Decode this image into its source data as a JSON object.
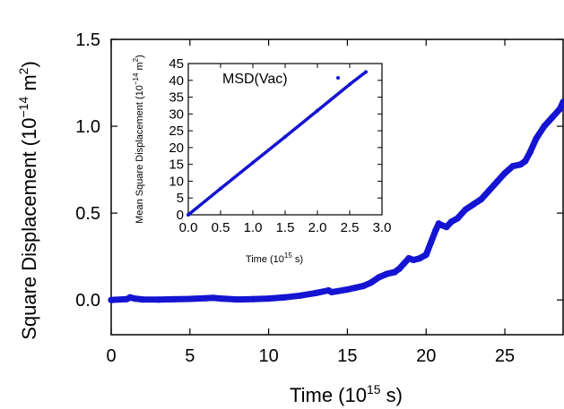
{
  "chart_data": [
    {
      "type": "scatter",
      "xlabel": {
        "pre": "Time (10",
        "sup": "15",
        "post": " s)"
      },
      "ylabel": {
        "pre": "Square Displacement (10",
        "sup": "−14",
        "mid": " m",
        "sup2": "2",
        "post": ")"
      },
      "xlim": [
        0,
        28.7
      ],
      "ylim": [
        -0.2,
        1.5
      ],
      "xticks": [
        "0",
        "5",
        "10",
        "15",
        "20",
        "25"
      ],
      "yticks": [
        "0.0",
        "0.5",
        "1.0",
        "1.5"
      ],
      "color": "#1414d2",
      "series": [
        {
          "x": [
            0,
            1,
            1.2,
            1.5,
            2,
            3,
            4,
            5,
            6,
            6.5,
            7,
            8,
            9,
            10,
            11,
            12,
            13,
            13.8,
            14,
            15,
            15.5,
            16,
            16.5,
            17,
            17.5,
            18,
            18.3,
            18.6,
            18.9,
            19.2,
            19.6,
            20,
            20.3,
            20.6,
            20.8,
            21,
            21.3,
            21.6,
            22,
            22.5,
            23,
            23.5,
            24,
            24.5,
            25,
            25.5,
            26,
            26.3,
            26.6,
            27,
            27.5,
            28,
            28.5,
            28.7
          ],
          "y": [
            0,
            0.005,
            0.015,
            0.008,
            0.003,
            0.002,
            0.004,
            0.006,
            0.01,
            0.012,
            0.008,
            0.003,
            0.005,
            0.008,
            0.015,
            0.025,
            0.04,
            0.055,
            0.045,
            0.06,
            0.07,
            0.08,
            0.1,
            0.13,
            0.15,
            0.16,
            0.18,
            0.21,
            0.24,
            0.23,
            0.24,
            0.26,
            0.33,
            0.4,
            0.44,
            0.43,
            0.42,
            0.45,
            0.47,
            0.52,
            0.55,
            0.58,
            0.63,
            0.68,
            0.73,
            0.77,
            0.78,
            0.8,
            0.85,
            0.93,
            1.0,
            1.05,
            1.1,
            1.14
          ]
        }
      ]
    },
    {
      "type": "line",
      "xlabel": {
        "pre": "Time (10",
        "sup": "15",
        "post": " s)"
      },
      "ylabel": {
        "pre": "Mean Square Displacement (10",
        "sup": "−14",
        "mid": " m",
        "sup2": "2",
        "post": ")"
      },
      "xlim": [
        0,
        3.0
      ],
      "ylim": [
        0,
        45
      ],
      "xticks": [
        "0.0",
        "0.5",
        "1.0",
        "1.5",
        "2.0",
        "2.5",
        "3.0"
      ],
      "yticks": [
        "0",
        "5",
        "10",
        "15",
        "20",
        "25",
        "30",
        "35",
        "40",
        "45"
      ],
      "legend": "MSD(Vac)",
      "legend_position": "top-left",
      "color": "#1414d2",
      "series": [
        {
          "name": "MSD(Vac)",
          "x": [
            0,
            0.5,
            1.0,
            1.5,
            2.0,
            2.5,
            2.75
          ],
          "y": [
            0,
            7.8,
            15.5,
            23.2,
            31.0,
            38.8,
            42.5
          ]
        }
      ]
    }
  ]
}
